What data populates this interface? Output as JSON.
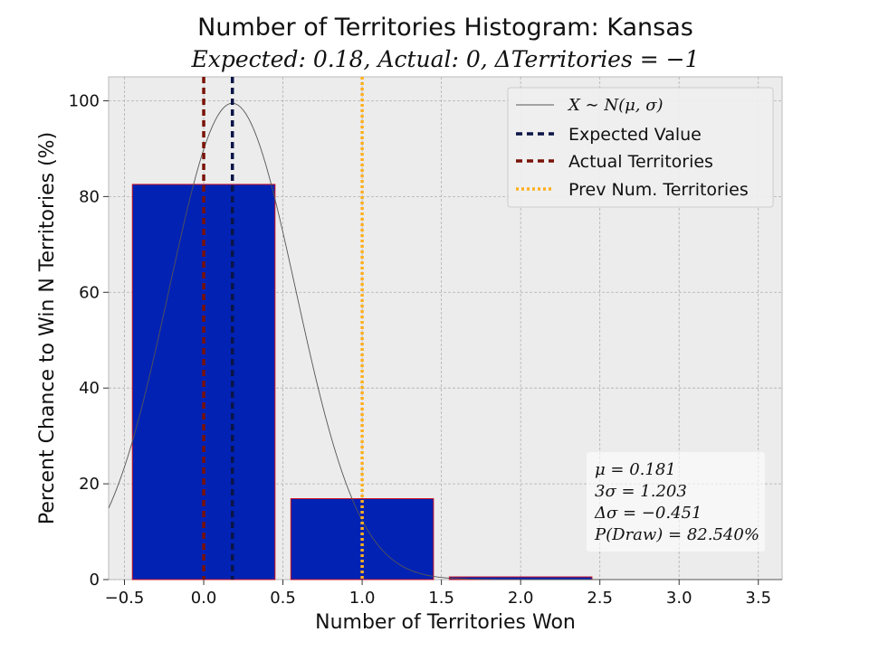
{
  "chart_data": {
    "type": "bar",
    "title": "Number of Territories Histogram: Kansas",
    "subtitle": "Expected: 0.18, Actual: 0, ΔTerritories = −1",
    "xlabel": "Number of Territories Won",
    "ylabel": "Percent Chance to Win N Territories (%)",
    "xlim": [
      -0.6,
      3.65
    ],
    "ylim": [
      0,
      105
    ],
    "xticks": [
      -0.5,
      0.0,
      0.5,
      1.0,
      1.5,
      2.0,
      2.5,
      3.0,
      3.5
    ],
    "xtick_labels": [
      "−0.5",
      "0.0",
      "0.5",
      "1.0",
      "1.5",
      "2.0",
      "2.5",
      "3.0",
      "3.5"
    ],
    "yticks": [
      0,
      20,
      40,
      60,
      80,
      100
    ],
    "ytick_labels": [
      "0",
      "20",
      "40",
      "60",
      "80",
      "100"
    ],
    "grid": true,
    "bars": [
      {
        "x": 0,
        "value": 82.54
      },
      {
        "x": 1,
        "value": 16.9
      },
      {
        "x": 2,
        "value": 0.56
      }
    ],
    "bar_width": 0.9,
    "normal_curve": {
      "mu": 0.181,
      "sigma": 0.401,
      "peak": 99.5
    },
    "vlines": [
      {
        "x": 0.181,
        "name": "Expected Value",
        "color": "#0b1547",
        "style": "dashed"
      },
      {
        "x": 0,
        "name": "Actual Territories",
        "color": "#7a1208",
        "style": "dashed"
      },
      {
        "x": 1,
        "name": "Prev Num. Territories",
        "color": "#ffb01f",
        "style": "dotted"
      }
    ],
    "legend": {
      "position": "top-right",
      "entries": [
        {
          "label": "X ∼ N(μ, σ)",
          "style": "thin-line",
          "color": "#555555"
        },
        {
          "label": "Expected Value",
          "style": "dashed",
          "color": "#0b1547"
        },
        {
          "label": "Actual Territories",
          "style": "dashed",
          "color": "#7a1208"
        },
        {
          "label": "Prev Num. Territories",
          "style": "dotted",
          "color": "#ffb01f"
        }
      ]
    },
    "stats_box": {
      "position": "bottom-right",
      "lines": [
        "μ = 0.181",
        "3σ = 1.203",
        "Δσ = −0.451",
        "P(Draw) = 82.540%"
      ]
    },
    "colors": {
      "bar_fill": "#0222b4",
      "bar_edge": "#cc1122",
      "plot_bg": "#ececec",
      "grid": "#b0b0b0",
      "curve": "#555555"
    }
  }
}
